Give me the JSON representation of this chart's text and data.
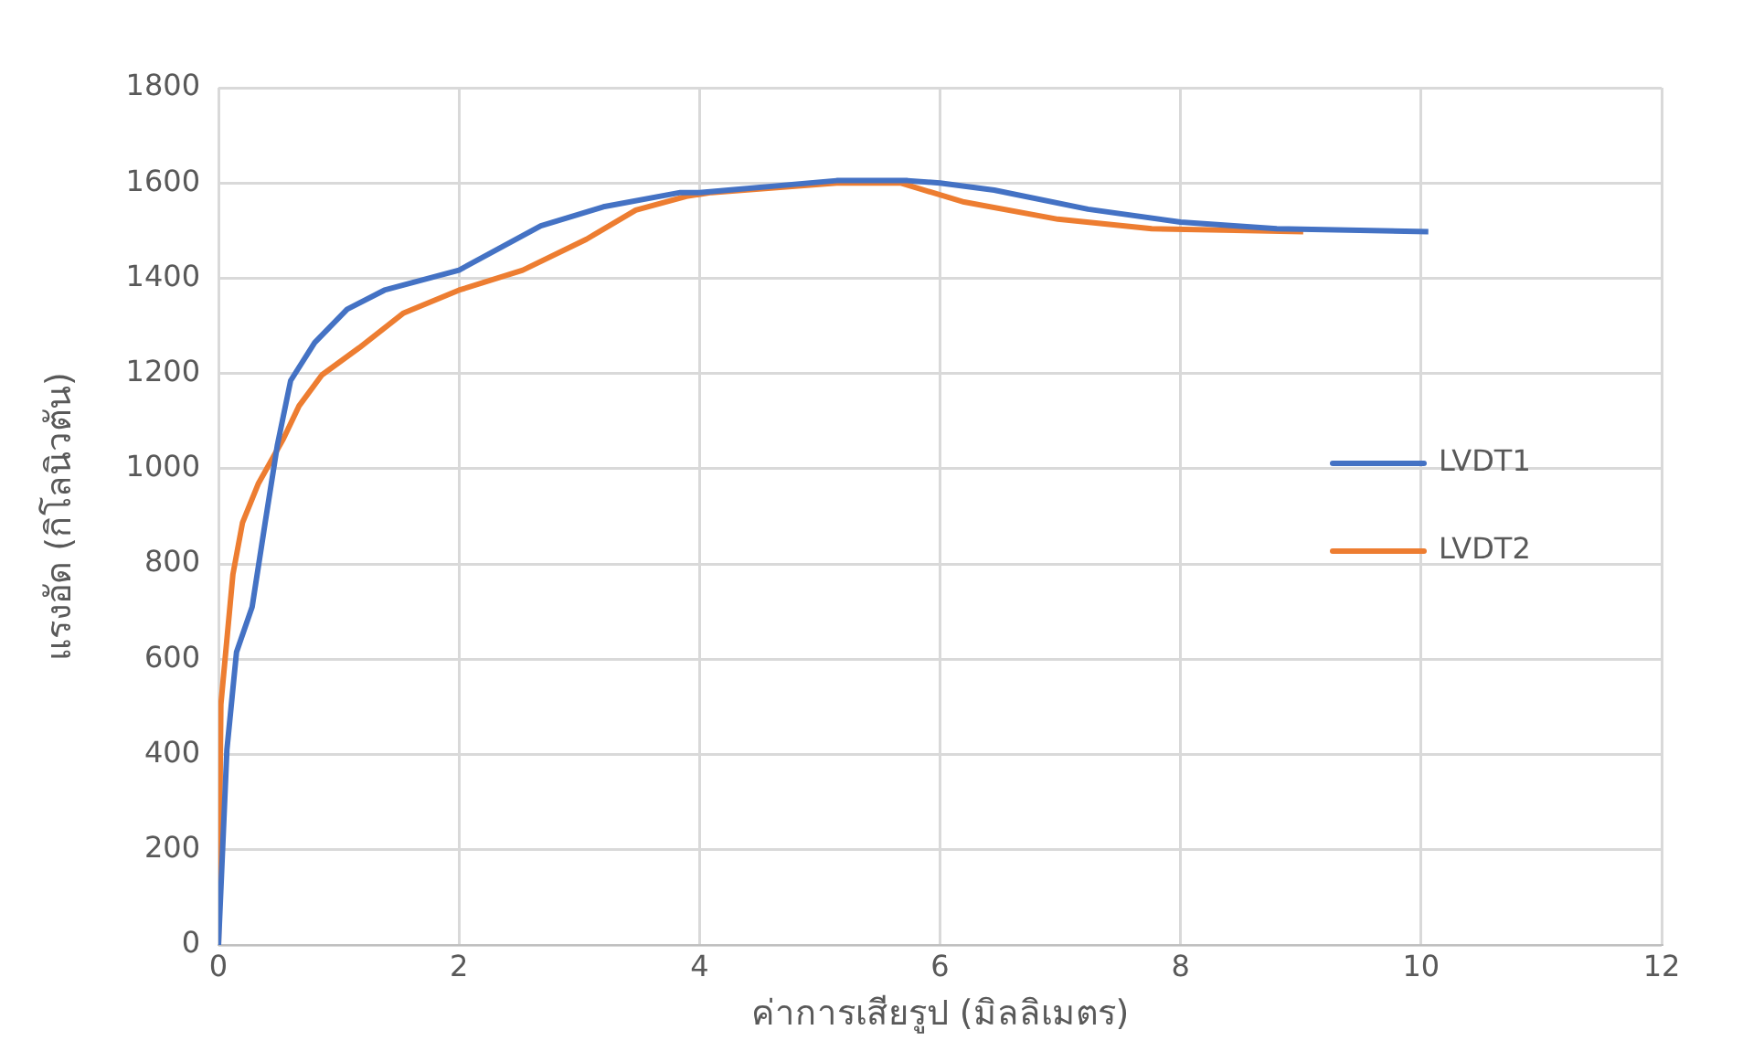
{
  "chart_data": {
    "type": "line",
    "xlabel": "ค่าการเสียรูป (มิลลิเมตร)",
    "ylabel": "แรงอัด (กิโลนิวตัน)",
    "xlim": [
      0,
      12
    ],
    "xticks": [
      0,
      2,
      4,
      6,
      8,
      10,
      12
    ],
    "ylim": [
      0,
      1800
    ],
    "yticks": [
      0,
      200,
      400,
      600,
      800,
      1000,
      1200,
      1400,
      1600,
      1800
    ],
    "grid": true,
    "legend": "right",
    "marker": "none",
    "line_style": "solid",
    "series": [
      {
        "name": "LVDT1",
        "color": "#4472c4",
        "x": [
          0,
          0.07,
          0.15,
          0.28,
          0.39,
          0.49,
          0.6,
          0.8,
          1.07,
          1.38,
          2.0,
          2.68,
          3.2,
          3.84,
          4.0,
          5.14,
          5.73,
          6.0,
          6.45,
          7.23,
          8.0,
          8.8,
          10.06
        ],
        "values": [
          0,
          410,
          615,
          710,
          890,
          1050,
          1185,
          1265,
          1335,
          1375,
          1417,
          1510,
          1550,
          1580,
          1580,
          1605,
          1605,
          1600,
          1585,
          1545,
          1518,
          1504,
          1498
        ]
      },
      {
        "name": "LVDT2",
        "color": "#ed7d31",
        "x": [
          0,
          0.02,
          0.12,
          0.2,
          0.33,
          0.54,
          0.67,
          0.86,
          1.17,
          1.54,
          2.0,
          2.53,
          3.06,
          3.47,
          3.89,
          4.1,
          5.14,
          5.67,
          6.2,
          6.98,
          7.76,
          9.02
        ],
        "values": [
          0,
          505,
          778,
          887,
          968,
          1063,
          1132,
          1197,
          1254,
          1327,
          1375,
          1417,
          1482,
          1543,
          1572,
          1580,
          1600,
          1600,
          1560,
          1524,
          1504,
          1498
        ]
      }
    ]
  }
}
